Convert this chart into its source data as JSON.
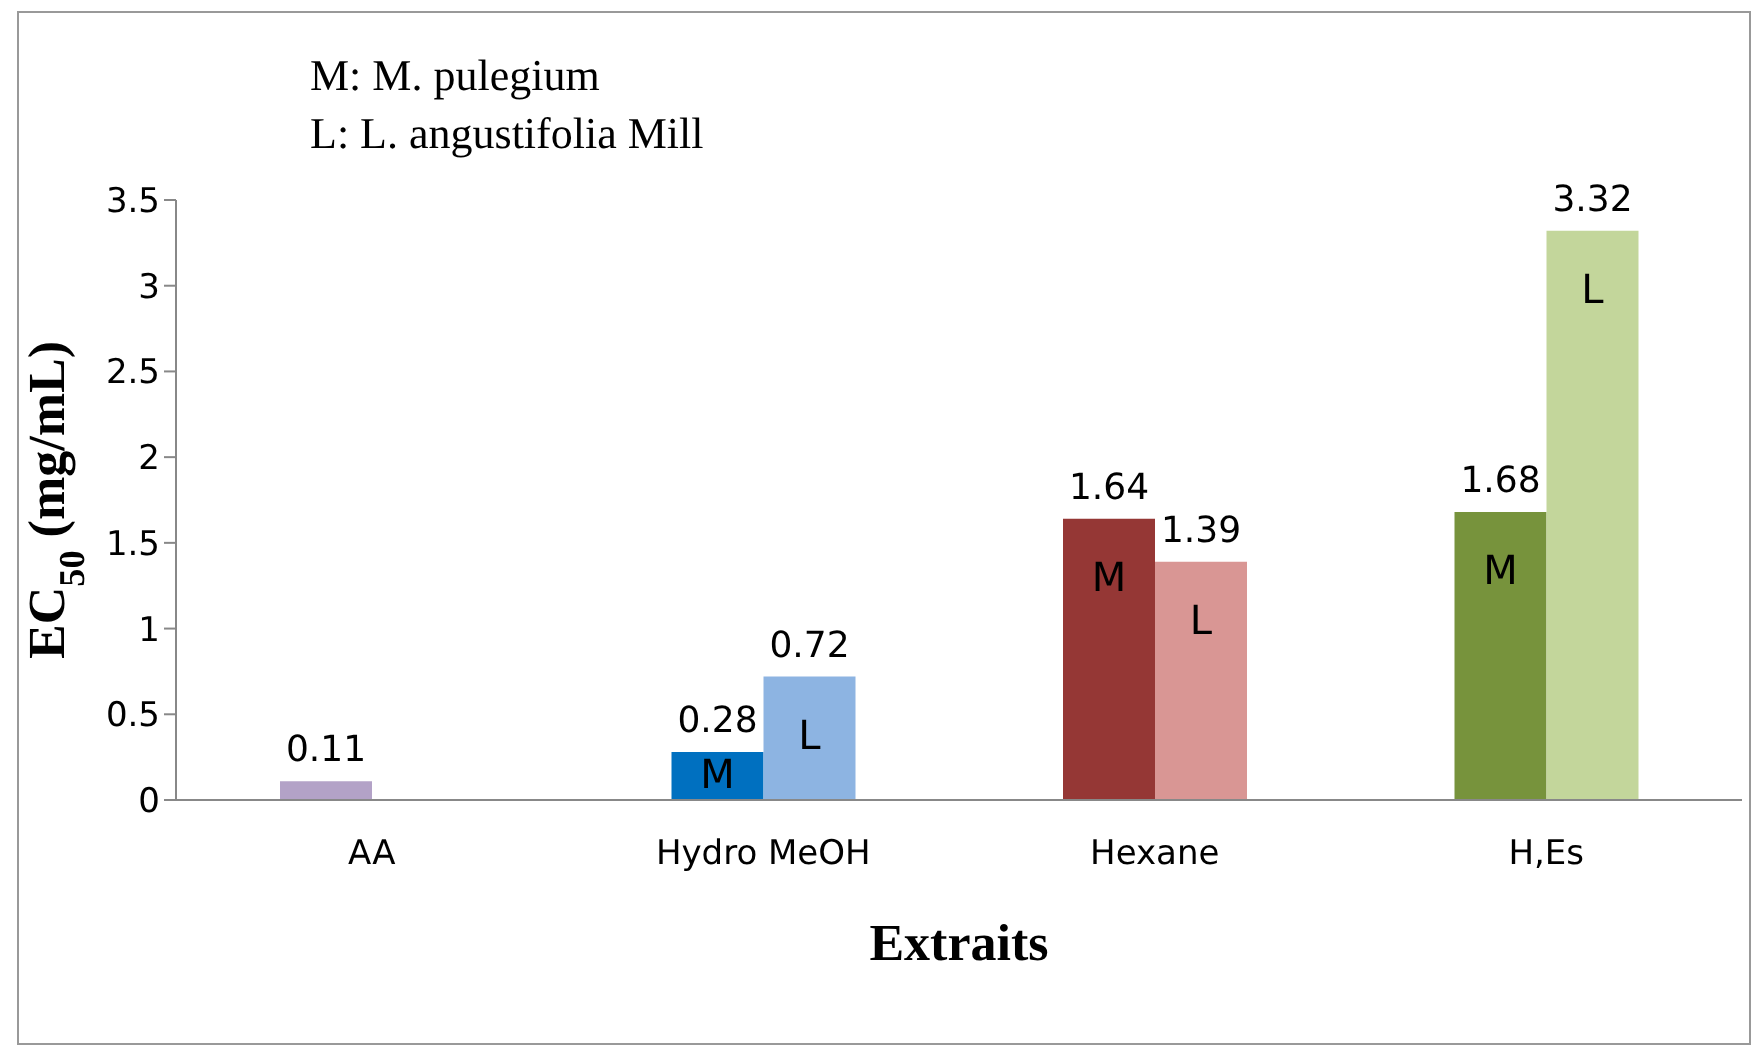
{
  "chart_data": {
    "type": "bar",
    "xlabel": "Extraits",
    "ylabel": "EC$_{50}$ (mg/mL)",
    "annotations": [
      "M: M. pulegium",
      "L: L. angustifolia Mill"
    ],
    "categories": [
      "AA",
      "Hydro MeOH",
      "Hexane",
      "H,Es"
    ],
    "series": [
      {
        "color": "#b3a2c7",
        "values": [
          0.11,
          null,
          null,
          null
        ]
      },
      {
        "name": "M",
        "colors": [
          null,
          "#0070c0",
          "#953735",
          "#77933c"
        ],
        "values": [
          null,
          0.28,
          1.64,
          1.68
        ]
      },
      {
        "name": "L",
        "colors": [
          null,
          "#8db4e2",
          "#d99694",
          "#c3d69b"
        ],
        "values": [
          null,
          0.72,
          1.39,
          3.32
        ]
      }
    ],
    "ylim": [
      0,
      3.5
    ],
    "yticks": [
      0,
      0.5,
      1,
      1.5,
      2,
      2.5,
      3,
      3.5
    ],
    "grid": false,
    "legend": false,
    "data_labels": true
  }
}
